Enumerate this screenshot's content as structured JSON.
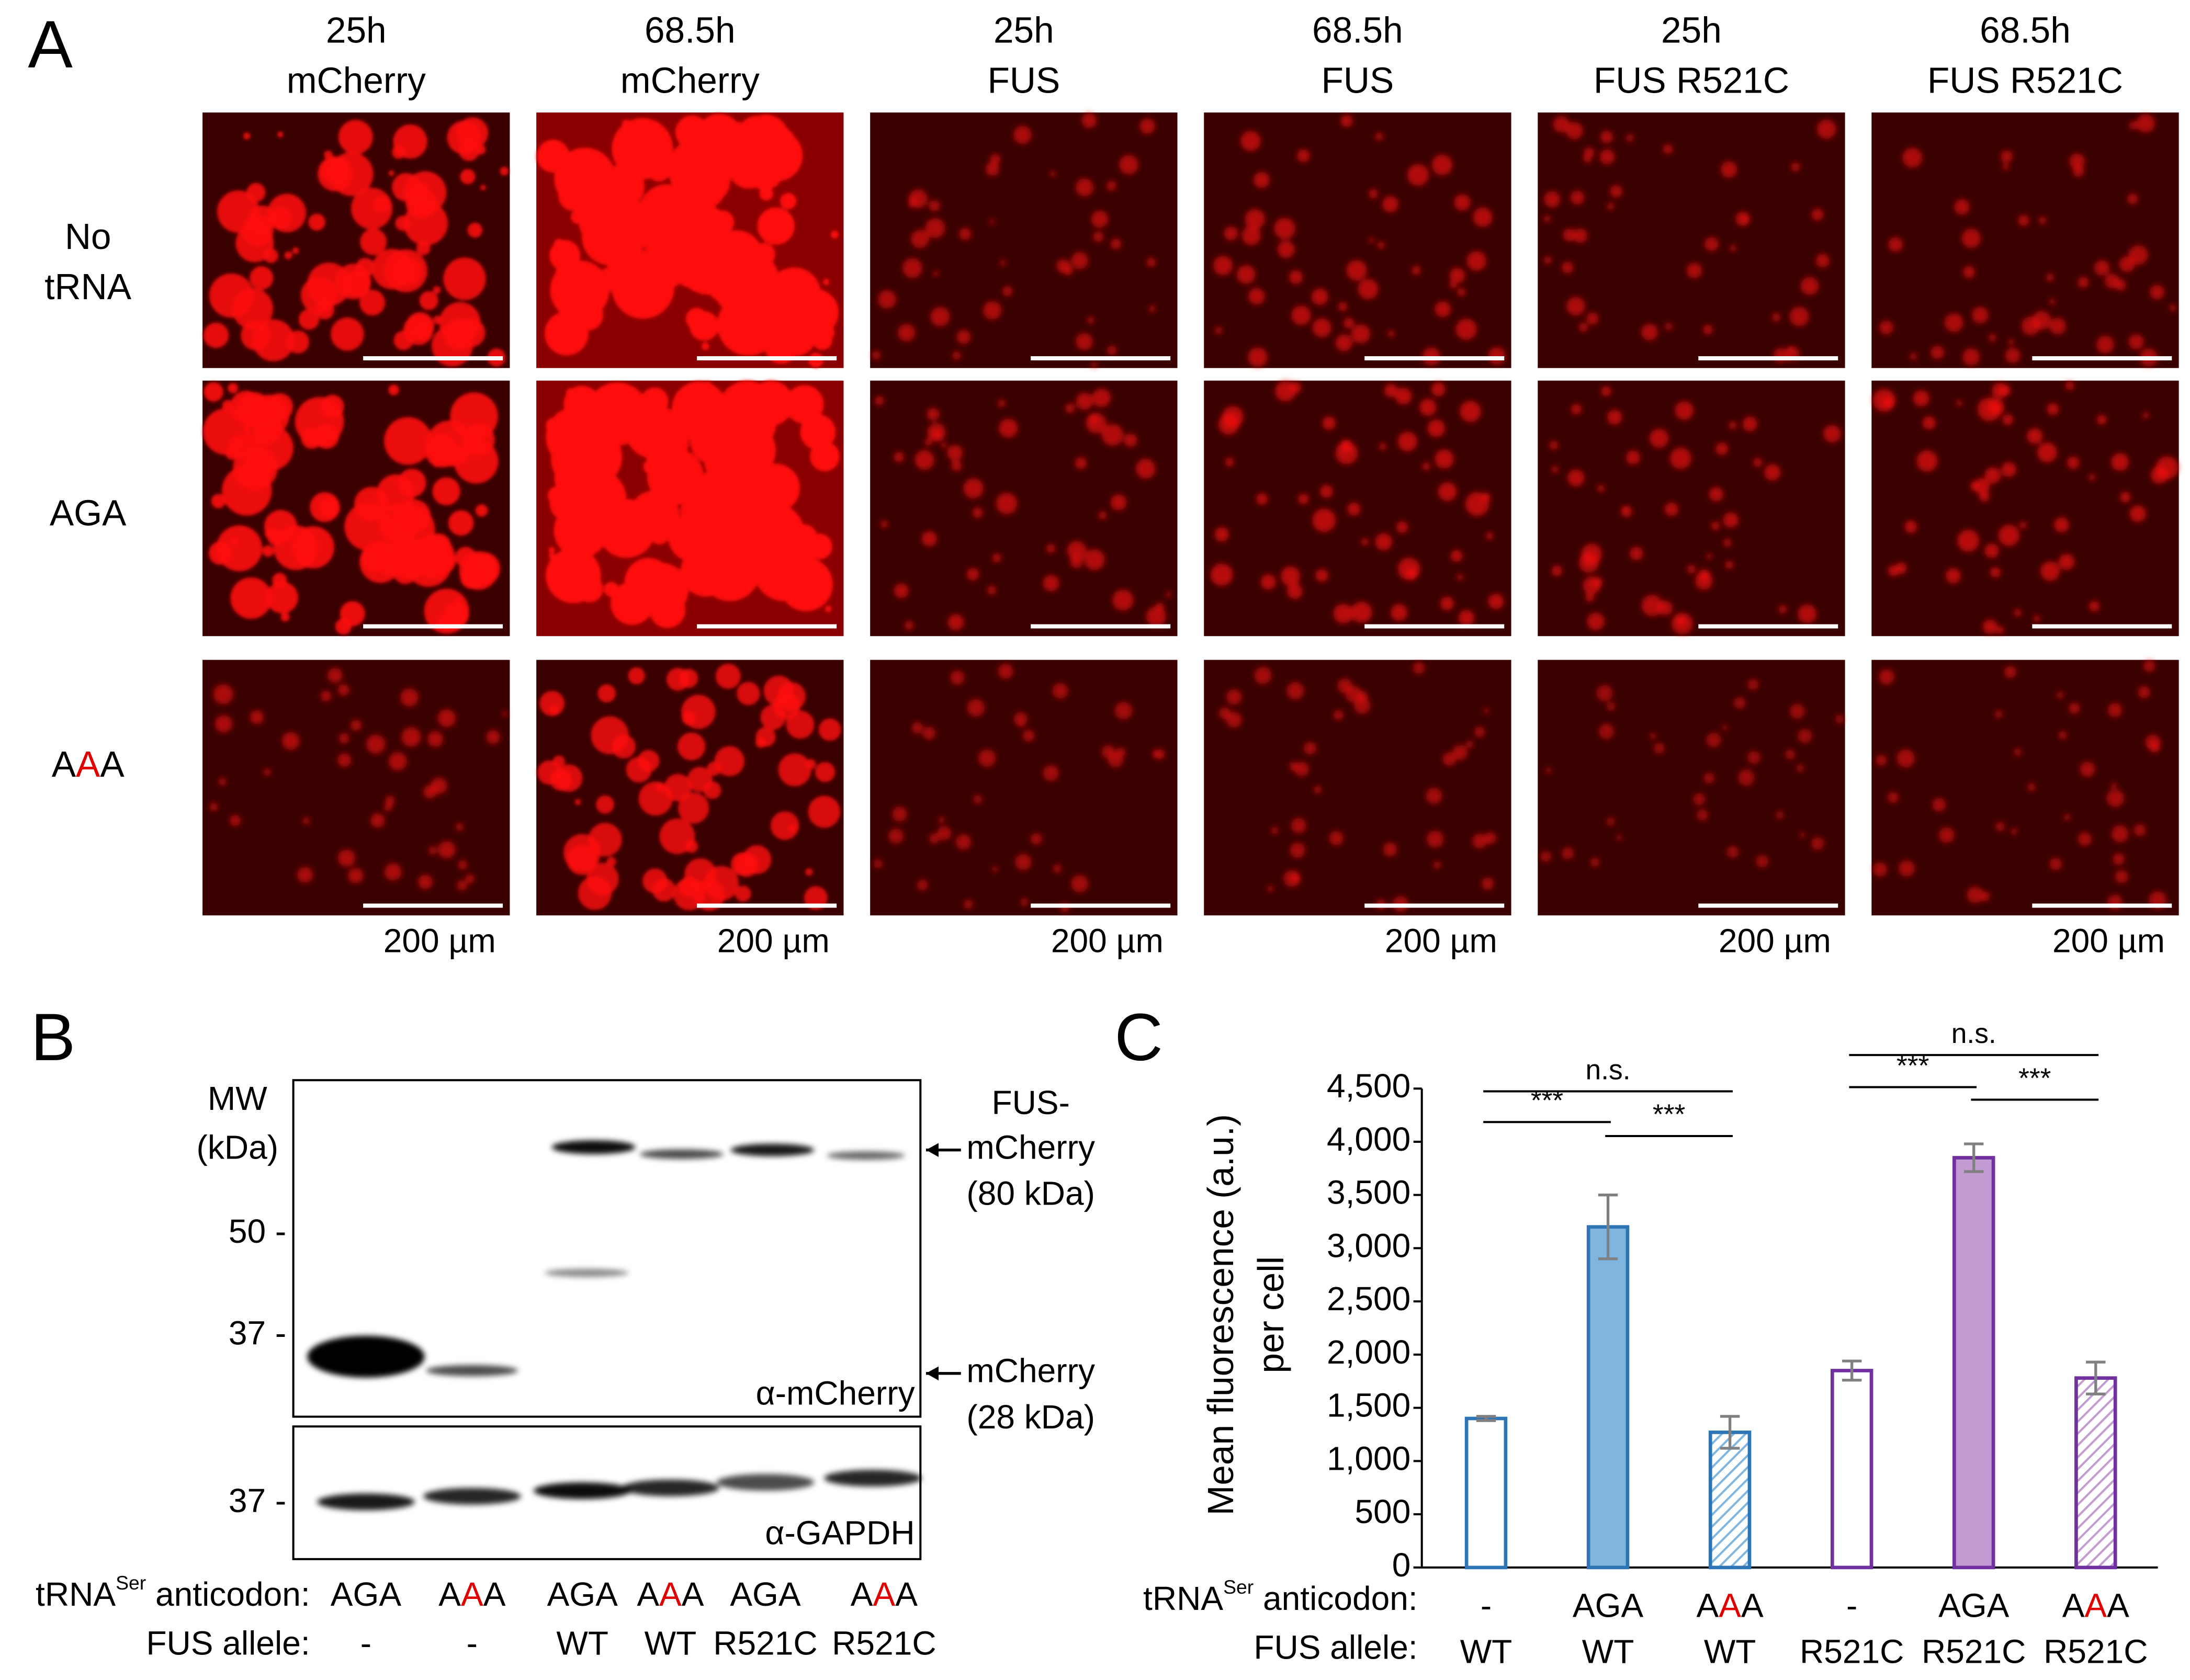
{
  "panel_a": {
    "label": "A",
    "columns": [
      [
        "25h",
        "mCherry"
      ],
      [
        "68.5h",
        "mCherry"
      ],
      [
        "25h",
        "FUS"
      ],
      [
        "68.5h",
        "FUS"
      ],
      [
        "25h",
        "FUS R521C"
      ],
      [
        "68.5h",
        "FUS R521C"
      ]
    ],
    "rows": [
      [
        [
          {
            "text": "No"
          }
        ],
        [
          {
            "text": "tRNA"
          }
        ]
      ],
      [
        [
          {
            "text": "AGA"
          }
        ]
      ],
      [
        [
          {
            "text": "A"
          },
          {
            "text": "A",
            "color": "#e00000"
          },
          {
            "text": "A"
          }
        ]
      ]
    ],
    "scale_bar_label": "200 µm"
  },
  "panel_b": {
    "label": "B",
    "mw_title": [
      "MW",
      "(kDa)"
    ],
    "markers": [
      "50 -",
      "37 -",
      "37 -"
    ],
    "fus_annotation": [
      "FUS-",
      "mCherry",
      "(80 kDa)"
    ],
    "mcherry_annotation": [
      "mCherry",
      "(28 kDa)"
    ],
    "antibodies": [
      "α-mCherry",
      "α-GAPDH"
    ],
    "anticodon_title": [
      {
        "text": "tRNA"
      },
      {
        "text": "Ser",
        "sup": true
      },
      {
        "text": " anticodon:"
      }
    ],
    "allele_title": "FUS allele:",
    "anticodons": [
      [
        {
          "text": "AGA"
        }
      ],
      [
        {
          "text": "A"
        },
        {
          "text": "A",
          "color": "#e00000"
        },
        {
          "text": "A"
        }
      ],
      [
        {
          "text": "AGA"
        }
      ],
      [
        {
          "text": "A"
        },
        {
          "text": "A",
          "color": "#e00000"
        },
        {
          "text": "A"
        }
      ],
      [
        {
          "text": "AGA"
        }
      ],
      [
        {
          "text": "A"
        },
        {
          "text": "A",
          "color": "#e00000"
        },
        {
          "text": "A"
        }
      ]
    ],
    "alleles": [
      "-",
      "-",
      "WT",
      "WT",
      "R521C",
      "R521C"
    ]
  },
  "chart_data": {
    "type": "bar",
    "label": "C",
    "y_label": [
      "Mean fluorescence (a.u.)",
      "per cell"
    ],
    "anticodon_title": [
      {
        "text": "tRNA"
      },
      {
        "text": "Ser",
        "sup": true
      },
      {
        "text": " anticodon:"
      }
    ],
    "allele_title": "FUS allele:",
    "anticodons": [
      [
        {
          "text": "-"
        }
      ],
      [
        {
          "text": "AGA"
        }
      ],
      [
        {
          "text": "A"
        },
        {
          "text": "A",
          "color": "#e00000"
        },
        {
          "text": "A"
        }
      ],
      [
        {
          "text": "-"
        }
      ],
      [
        {
          "text": "AGA"
        }
      ],
      [
        {
          "text": "A"
        },
        {
          "text": "A",
          "color": "#e00000"
        },
        {
          "text": "A"
        }
      ]
    ],
    "categories": [
      "WT",
      "WT",
      "WT",
      "R521C",
      "R521C",
      "R521C"
    ],
    "values": [
      1400,
      3200,
      1270,
      1850,
      3850,
      1780
    ],
    "errors": [
      20,
      300,
      150,
      90,
      130,
      150
    ],
    "colors": [
      "#2e75b6",
      "#2e75b6",
      "#2e75b6",
      "#7030a0",
      "#7030a0",
      "#7030a0"
    ],
    "fill_colors": [
      "#ffffff",
      "#7fb5de",
      "#7fb5de",
      "#ffffff",
      "#c39bd3",
      "#c39bd3"
    ],
    "styles": [
      "open",
      "filled",
      "hatched",
      "open",
      "filled",
      "hatched"
    ],
    "ylim": [
      0,
      4500
    ],
    "yticks": [
      0,
      500,
      {
        "value": 1000,
        "label": "1,000"
      },
      {
        "value": 1500,
        "label": "1,500"
      },
      {
        "value": 2000,
        "label": "2,000"
      },
      {
        "value": 2500,
        "label": "2,500"
      },
      {
        "value": 3000,
        "label": "3,000"
      },
      {
        "value": 3500,
        "label": "3,500"
      },
      {
        "value": 4000,
        "label": "4,000"
      },
      {
        "value": 4500,
        "label": "4,500"
      }
    ],
    "significance": [
      {
        "label": "n.s."
      },
      {
        "label": "***"
      },
      {
        "label": "***"
      },
      {
        "label": "n.s."
      },
      {
        "label": "***"
      },
      {
        "label": "***"
      }
    ]
  }
}
